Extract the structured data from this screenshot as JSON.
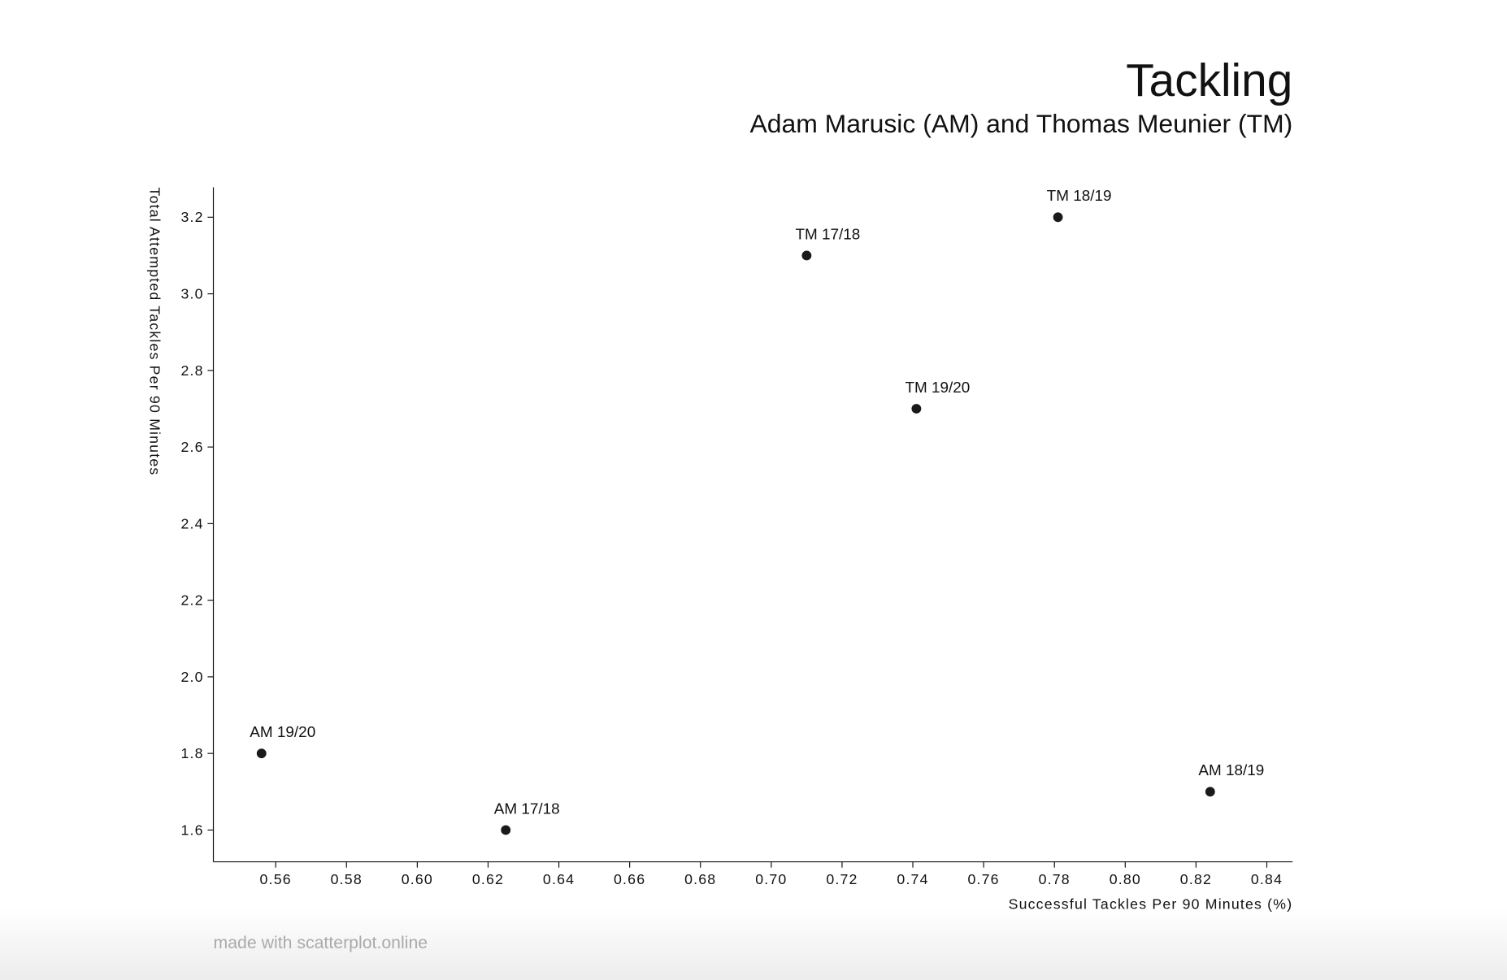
{
  "chart_data": {
    "type": "scatter",
    "title": "Tackling",
    "subtitle": "Adam Marusic (AM) and Thomas Meunier (TM)",
    "x_label": "Successful Tackles Per 90 Minutes (%)",
    "y_label": "Total Attempted Tackles Per 90 Minutes",
    "watermark": "made with scatterplot.online",
    "color": "#1a1a1a",
    "labels": [
      "AM 19/20",
      "AM 17/18",
      "TM 17/18",
      "TM 19/20",
      "TM 18/19",
      "AM 18/19"
    ],
    "x": [
      0.556,
      0.625,
      0.71,
      0.741,
      0.781,
      0.824
    ],
    "values": [
      1.8,
      1.6,
      3.1,
      2.7,
      3.2,
      1.7
    ],
    "xlim": [
      0.5424,
      0.8473
    ],
    "ylim": [
      1.517,
      3.278
    ],
    "xticks": [
      0.56,
      0.58,
      {
        "value": 0.6,
        "label": "0.60"
      },
      0.62,
      0.64,
      0.66,
      0.68,
      {
        "value": 0.7,
        "label": "0.70"
      },
      0.72,
      0.74,
      0.76,
      0.78,
      {
        "value": 0.8,
        "label": "0.80"
      },
      0.82,
      0.84
    ],
    "yticks": [
      1.6,
      1.8,
      {
        "value": 2.0,
        "label": "2.0"
      },
      2.2,
      2.4,
      2.6,
      2.8,
      {
        "value": 3.0,
        "label": "3.0"
      },
      3.2
    ]
  }
}
